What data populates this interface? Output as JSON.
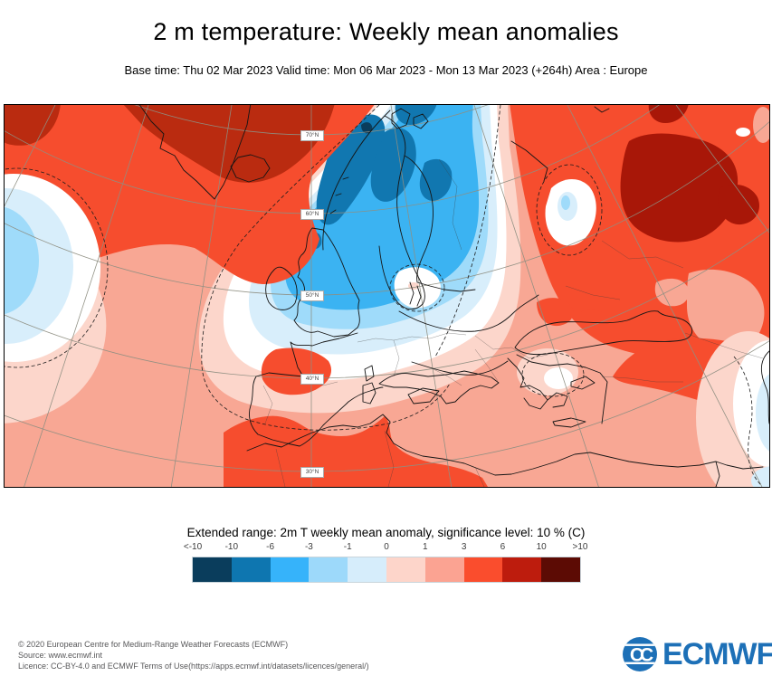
{
  "header": {
    "title": "2 m temperature: Weekly mean anomalies",
    "subtitle": "Base time: Thu 02 Mar 2023 Valid time: Mon 06 Mar 2023 - Mon 13 Mar 2023 (+264h) Area : Europe"
  },
  "map": {
    "latitude_labels": [
      "70°N",
      "60°N",
      "50°N",
      "40°N",
      "30°N"
    ],
    "colors": {
      "salmon": "#F8A794",
      "pink": "#FCD6CB",
      "vlblue": "#D8EEFB",
      "lblue": "#9FDBFA",
      "bblue": "#3BB3F2",
      "dblue": "#1177B0",
      "navy": "#0A3D5C",
      "red": "#F64D2E",
      "dredA": "#BA2B10",
      "dredB": "#A81708",
      "logoblue": "#1D70B7"
    }
  },
  "legend": {
    "title": "Extended range: 2m T weekly mean anomaly, significance level: 10 % (C)",
    "tick_labels": [
      "<-10",
      "-10",
      "-6",
      "-3",
      "-1",
      "0",
      "1",
      "3",
      "6",
      "10",
      ">10"
    ],
    "colors": [
      "#0A3D5C",
      "#0E76B0",
      "#36B3FA",
      "#9DD9FA",
      "#D6EDFB",
      "#FDD5CA",
      "#FBA392",
      "#FA4D2D",
      "#BD1C0D",
      "#5C0B04"
    ]
  },
  "footer": {
    "lines": [
      "© 2020 European Centre for Medium-Range Weather Forecasts (ECMWF)",
      "Source: www.ecmwf.int",
      "Licence: CC-BY-4.0 and ECMWF Terms of Use(https://apps.ecmwf.int/datasets/licences/general/)"
    ]
  },
  "logo": {
    "text": "ECMWF"
  }
}
